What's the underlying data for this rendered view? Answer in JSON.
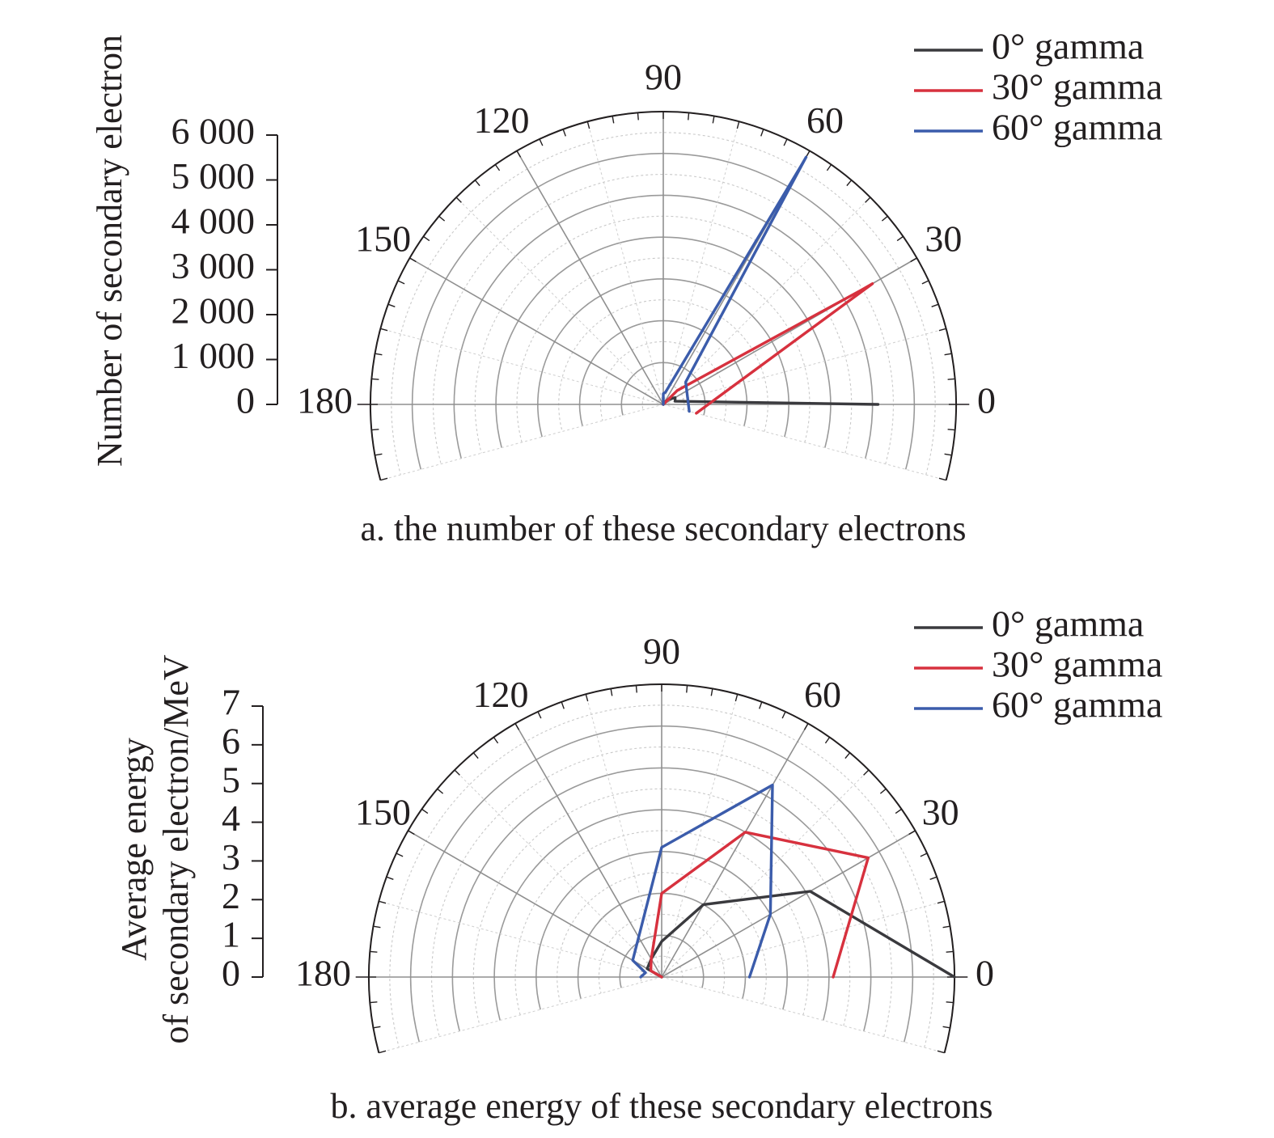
{
  "chart_data": [
    {
      "type": "polar-line",
      "id": "a",
      "ylabel": "Number of secondary electron",
      "caption": "a. the number of these secondary electrons",
      "rlim": [
        0,
        6000
      ],
      "r_ticks": [
        0,
        1000,
        2000,
        3000,
        4000,
        5000,
        6000
      ],
      "r_tick_labels": [
        "0",
        "1 000",
        "2 000",
        "3 000",
        "4 000",
        "5 000",
        "6 000"
      ],
      "theta_range": [
        -15,
        195
      ],
      "theta_ticks": [
        0,
        30,
        60,
        90,
        120,
        150,
        180
      ],
      "theta_tick_labels": [
        "0",
        "30",
        "60",
        "90",
        "120",
        "150",
        "180"
      ],
      "legend": [
        "0° gamma",
        "30° gamma",
        "60° gamma"
      ],
      "series": [
        {
          "name": "0° gamma",
          "color": "#3a3a3e",
          "points": [
            [
              0,
              4400
            ],
            [
              15,
              250
            ],
            [
              30,
              280
            ],
            [
              45,
              150
            ],
            [
              60,
              50
            ],
            [
              90,
              0
            ],
            [
              180,
              0
            ]
          ]
        },
        {
          "name": "30° gamma",
          "color": "#d7313e",
          "points": [
            [
              -15,
              700
            ],
            [
              30,
              4950
            ],
            [
              30,
              4700
            ],
            [
              45,
              400
            ],
            [
              90,
              0
            ],
            [
              180,
              0
            ]
          ]
        },
        {
          "name": "60° gamma",
          "color": "#3b5cab",
          "points": [
            [
              -15,
              550
            ],
            [
              45,
              650
            ],
            [
              60,
              5850
            ],
            [
              60,
              5650
            ],
            [
              80,
              250
            ],
            [
              90,
              220
            ],
            [
              180,
              0
            ]
          ]
        }
      ]
    },
    {
      "type": "polar-line",
      "id": "b",
      "ylabel": [
        "Average energy",
        "of secondary electron/MeV"
      ],
      "caption": "b. average energy of these secondary electrons",
      "rlim": [
        0,
        7
      ],
      "r_ticks": [
        0,
        1,
        2,
        3,
        4,
        5,
        6,
        7
      ],
      "r_tick_labels": [
        "0",
        "1",
        "2",
        "3",
        "4",
        "5",
        "6",
        "7"
      ],
      "theta_range": [
        -15,
        195
      ],
      "theta_ticks": [
        0,
        30,
        60,
        90,
        120,
        150,
        180
      ],
      "theta_tick_labels": [
        "0",
        "30",
        "60",
        "90",
        "120",
        "150",
        "180"
      ],
      "legend": [
        "0° gamma",
        "30° gamma",
        "60° gamma"
      ],
      "series": [
        {
          "name": "0° gamma",
          "color": "#3a3a3e",
          "points": [
            [
              0,
              7.0
            ],
            [
              30,
              4.1
            ],
            [
              60,
              2.0
            ],
            [
              90,
              0.85
            ],
            [
              120,
              0.5
            ],
            [
              150,
              0.4
            ],
            [
              180,
              0.0
            ]
          ]
        },
        {
          "name": "30° gamma",
          "color": "#d7313e",
          "points": [
            [
              0,
              4.1
            ],
            [
              30,
              5.7
            ],
            [
              60,
              4.0
            ],
            [
              90,
              2.0
            ],
            [
              120,
              0.5
            ],
            [
              150,
              0.3
            ],
            [
              180,
              0.0
            ]
          ]
        },
        {
          "name": "60° gamma",
          "color": "#3b5cab",
          "points": [
            [
              0,
              2.1
            ],
            [
              30,
              3.0
            ],
            [
              60,
              5.3
            ],
            [
              90,
              3.1
            ],
            [
              150,
              0.8
            ],
            [
              165,
              0.4
            ],
            [
              180,
              0.5
            ]
          ]
        }
      ]
    }
  ]
}
